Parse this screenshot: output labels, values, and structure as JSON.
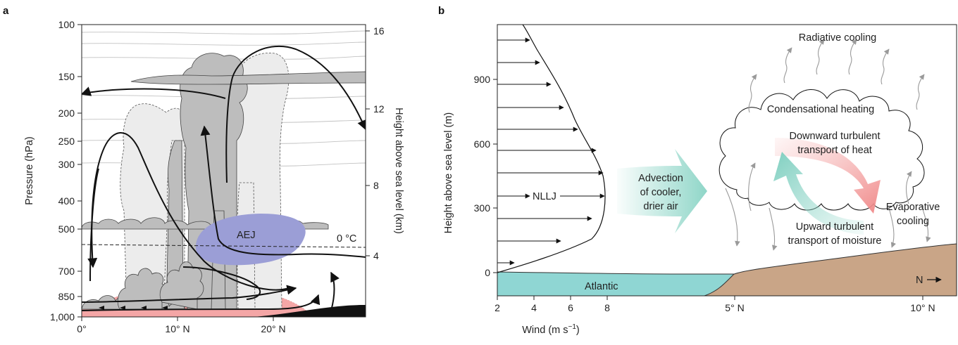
{
  "panel_a": {
    "label": "a",
    "y_axis_label": "Pressure (hPa)",
    "y2_axis_label": "Height above sea level (km)",
    "pressure_ticks": [
      "100",
      "150",
      "200",
      "250",
      "300",
      "400",
      "500",
      "700",
      "850",
      "1,000"
    ],
    "height_ticks": [
      "16",
      "12",
      "8",
      "4"
    ],
    "x_ticks": [
      "0°",
      "10° N",
      "20° N"
    ],
    "aej_label": "AEJ",
    "freezing_label": "0 °C"
  },
  "panel_b": {
    "label": "b",
    "y_axis_label": "Height above sea level (m)",
    "y_ticks": [
      "0",
      "300",
      "600",
      "900"
    ],
    "x_ticks": [
      "2",
      "4",
      "6",
      "8"
    ],
    "x_axis_label": "Wind (m s",
    "x_axis_label_sup": "−1",
    "x_axis_label_end": ")",
    "lat_ticks": [
      "5° N",
      "10° N"
    ],
    "nllj_label": "NLLJ",
    "atlantic_label": "Atlantic",
    "north_label": "N",
    "advection_line1": "Advection",
    "advection_line2": "of cooler,",
    "advection_line3": "drier air",
    "radiative_label": "Radiative cooling",
    "condensational_label": "Condensational heating",
    "downward_line1": "Downward turbulent",
    "downward_line2": "transport of heat",
    "upward_line1": "Upward turbulent",
    "upward_line2": "transport of moisture",
    "evaporative_line1": "Evaporative",
    "evaporative_line2": "cooling",
    "colors": {
      "ocean": "#8fd6d3",
      "land": "#c9a587",
      "advection": "#8fd6c8",
      "heat": "#f4a6a6",
      "cloud_fill": "#ffffff"
    }
  },
  "panel_a_colors": {
    "aej": "#9b9ed6",
    "warm_layer": "#f4a6a6",
    "dark_cloud": "#bdbdbd",
    "light_cloud": "#ececec",
    "terrain": "#111111"
  }
}
